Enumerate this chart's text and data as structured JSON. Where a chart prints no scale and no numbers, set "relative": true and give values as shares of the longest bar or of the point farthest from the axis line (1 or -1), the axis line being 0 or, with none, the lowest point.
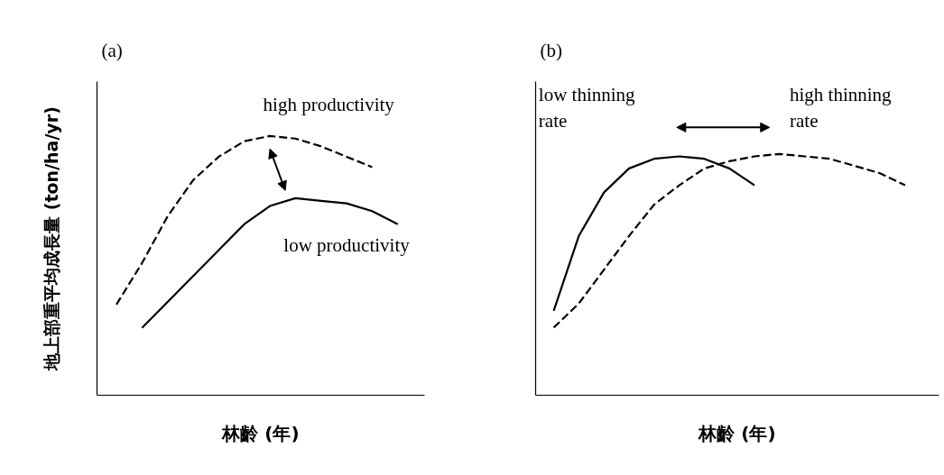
{
  "chart_data": [
    {
      "type": "line",
      "title": "(a)",
      "xlabel": "林齡 (年)",
      "ylabel": "地上部重平均成長量 (ton/ha/yr)",
      "relative": true,
      "categories": [
        null,
        null,
        null,
        null,
        null,
        null,
        null,
        null,
        null,
        null,
        null,
        null
      ],
      "series": [
        {
          "name": "high productivity",
          "color": "#000000",
          "line_style": "dashed",
          "values": [
            0.35,
            0.51,
            0.69,
            0.83,
            0.92,
            0.98,
            1,
            0.99,
            0.96,
            0.92,
            0.88,
            null
          ]
        },
        {
          "name": "low productivity",
          "color": "#000000",
          "line_style": "solid",
          "values": [
            null,
            0.26,
            0.36,
            0.46,
            0.56,
            0.66,
            0.73,
            0.76,
            0.75,
            0.74,
            0.71,
            0.66
          ]
        }
      ]
    },
    {
      "type": "line",
      "title": "(b)",
      "xlabel": "林齡 (年)",
      "relative": true,
      "categories": [
        null,
        null,
        null,
        null,
        null,
        null,
        null,
        null,
        null,
        null,
        null,
        null,
        null,
        null,
        null
      ],
      "series": [
        {
          "name": "low thinning rate",
          "color": "#000000",
          "line_style": "solid",
          "values": [
            0.35,
            0.66,
            0.84,
            0.94,
            0.98,
            0.99,
            0.98,
            0.94,
            0.87,
            null,
            null,
            null,
            null,
            null,
            null
          ]
        },
        {
          "name": "high thinning rate",
          "color": "#000000",
          "line_style": "dashed",
          "values": [
            0.28,
            0.38,
            0.52,
            0.66,
            0.79,
            0.87,
            0.94,
            0.97,
            0.99,
            1,
            0.99,
            0.98,
            0.95,
            0.92,
            0.87
          ]
        }
      ]
    }
  ]
}
